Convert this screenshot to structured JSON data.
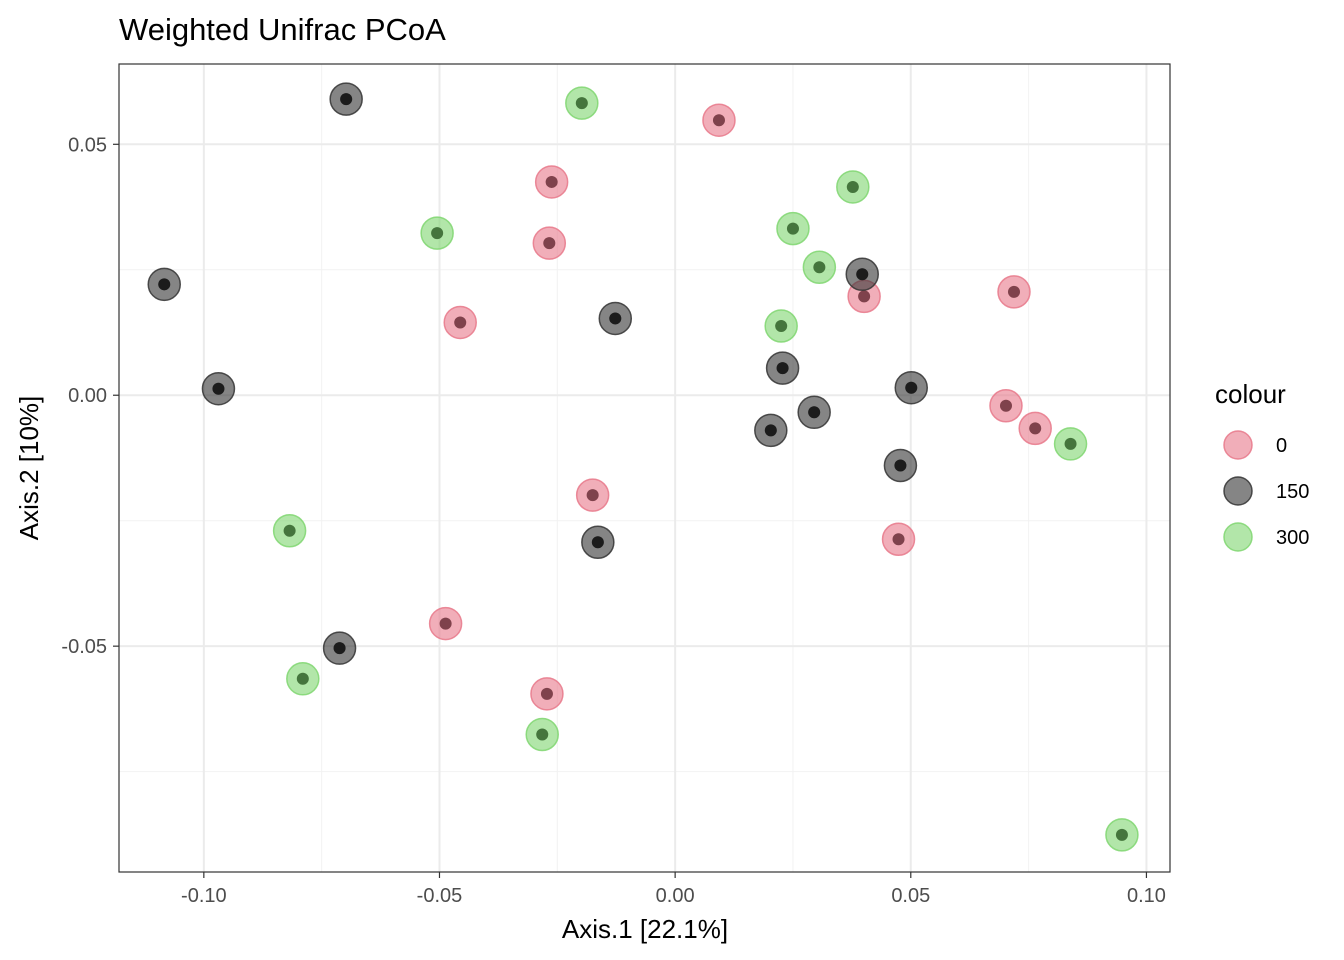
{
  "chart_data": {
    "type": "scatter",
    "title": "Weighted Unifrac PCoA",
    "xlabel": "Axis.1   [22.1%]",
    "ylabel": "Axis.2   [10%]",
    "xlim": [
      -0.118,
      0.105
    ],
    "ylim": [
      -0.095,
      0.066
    ],
    "x_ticks": [
      {
        "value": -0.1,
        "label": "-0.10"
      },
      {
        "value": -0.05,
        "label": "-0.05"
      },
      {
        "value": 0.0,
        "label": "0.00"
      },
      {
        "value": 0.05,
        "label": "0.05"
      },
      {
        "value": 0.1,
        "label": "0.10"
      }
    ],
    "y_ticks": [
      {
        "value": 0.05,
        "label": "0.05"
      },
      {
        "value": 0.0,
        "label": "0.00"
      },
      {
        "value": -0.05,
        "label": "-0.05"
      }
    ],
    "grid": true,
    "legend": {
      "title": "colour",
      "position": "right"
    },
    "series": [
      {
        "name": "0",
        "color": "#e8788a",
        "points": [
          {
            "x": 0.0093,
            "y": 0.0548
          },
          {
            "x": -0.0262,
            "y": 0.0425
          },
          {
            "x": -0.0267,
            "y": 0.0303
          },
          {
            "x": -0.0456,
            "y": 0.0145
          },
          {
            "x": 0.0401,
            "y": 0.0197
          },
          {
            "x": 0.0719,
            "y": 0.0206
          },
          {
            "x": 0.0702,
            "y": -0.0021
          },
          {
            "x": 0.0764,
            "y": -0.0066
          },
          {
            "x": -0.0175,
            "y": -0.0199
          },
          {
            "x": 0.0474,
            "y": -0.0287
          },
          {
            "x": -0.0487,
            "y": -0.0455
          },
          {
            "x": -0.0272,
            "y": -0.0595
          }
        ]
      },
      {
        "name": "150",
        "color": "#333333",
        "points": [
          {
            "x": -0.0698,
            "y": 0.059
          },
          {
            "x": -0.1084,
            "y": 0.0221
          },
          {
            "x": -0.0969,
            "y": 0.0013
          },
          {
            "x": -0.0127,
            "y": 0.0153
          },
          {
            "x": 0.0397,
            "y": 0.0241
          },
          {
            "x": 0.0228,
            "y": 0.0054
          },
          {
            "x": 0.0501,
            "y": 0.0015
          },
          {
            "x": 0.0295,
            "y": -0.0034
          },
          {
            "x": 0.0203,
            "y": -0.007
          },
          {
            "x": 0.0478,
            "y": -0.014
          },
          {
            "x": -0.0164,
            "y": -0.0293
          },
          {
            "x": -0.0712,
            "y": -0.0504
          }
        ]
      },
      {
        "name": "300",
        "color": "#7fd670",
        "points": [
          {
            "x": -0.0198,
            "y": 0.0582
          },
          {
            "x": 0.0377,
            "y": 0.0415
          },
          {
            "x": 0.025,
            "y": 0.0332
          },
          {
            "x": -0.0505,
            "y": 0.0323
          },
          {
            "x": 0.0306,
            "y": 0.0255
          },
          {
            "x": 0.0225,
            "y": 0.0138
          },
          {
            "x": 0.0839,
            "y": -0.0097
          },
          {
            "x": -0.0818,
            "y": -0.027
          },
          {
            "x": -0.079,
            "y": -0.0565
          },
          {
            "x": -0.0282,
            "y": -0.0676
          },
          {
            "x": 0.0948,
            "y": -0.0876
          }
        ]
      }
    ]
  }
}
